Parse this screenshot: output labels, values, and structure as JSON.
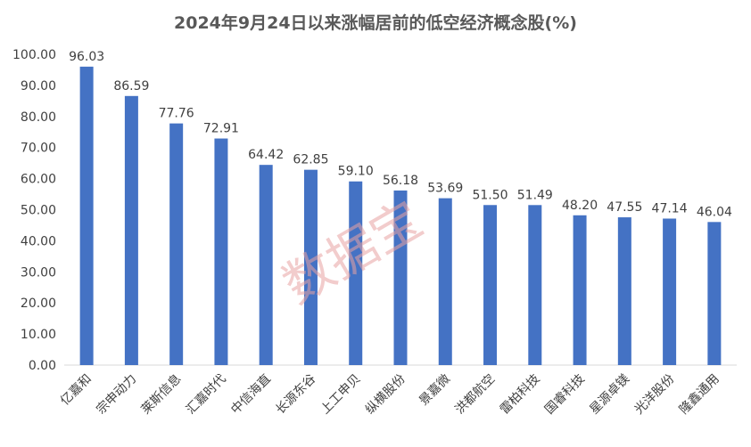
{
  "chart_data": {
    "type": "bar",
    "title": "2024年9月24日以来涨幅居前的低空经济概念股(%)",
    "categories": [
      "亿嘉和",
      "宗申动力",
      "莱斯信息",
      "汇嘉时代",
      "中信海直",
      "长源东谷",
      "上工申贝",
      "纵横股份",
      "景嘉微",
      "洪都航空",
      "雷柏科技",
      "国睿科技",
      "星源卓镁",
      "光洋股份",
      "隆鑫通用"
    ],
    "values": [
      96.03,
      86.59,
      77.76,
      72.91,
      64.42,
      62.85,
      59.1,
      56.18,
      53.69,
      51.5,
      51.49,
      48.2,
      47.55,
      47.14,
      46.04
    ],
    "data_labels": [
      "96.03",
      "86.59",
      "77.76",
      "72.91",
      "64.42",
      "62.85",
      "59.10",
      "56.18",
      "53.69",
      "51.50",
      "51.49",
      "48.20",
      "47.55",
      "47.14",
      "46.04"
    ],
    "yticks": [
      "0.00",
      "10.00",
      "20.00",
      "30.00",
      "40.00",
      "50.00",
      "60.00",
      "70.00",
      "80.00",
      "90.00",
      "100.00"
    ],
    "ylim": [
      0,
      100
    ],
    "xlabel": "",
    "ylabel": "",
    "grid": false,
    "bar_color": "#4472c4",
    "watermark": "数据宝"
  }
}
